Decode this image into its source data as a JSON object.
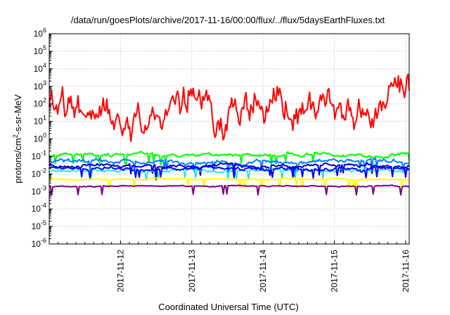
{
  "chart_data": {
    "type": "line",
    "title": "/data/run/goesPlots/archive/2017-11-16/00:00/flux/../flux/5daysEarthFluxes.txt",
    "xlabel": "Coordinated Universal Time (UTC)",
    "ylabel_parts": [
      "protons/cm",
      "2",
      "-s-sr-MeV"
    ],
    "x_ticks": [
      {
        "label": "2017-11-12",
        "day": 12
      },
      {
        "label": "2017-11-13",
        "day": 13
      },
      {
        "label": "2017-11-14",
        "day": 14
      },
      {
        "label": "2017-11-15",
        "day": 15
      },
      {
        "label": "2017-11-16",
        "day": 16
      }
    ],
    "xlim_days": [
      11.0,
      16.05
    ],
    "ylim_exp": [
      -6,
      6
    ],
    "y_scale": "log",
    "y_tick_exps": [
      -6,
      -5,
      -4,
      -3,
      -2,
      -1,
      0,
      1,
      2,
      3,
      4,
      5,
      6
    ],
    "grid": true,
    "series": [
      {
        "color": "#ff0000",
        "base": 40,
        "noise": 1.2,
        "width": 2
      },
      {
        "color": "#00ff00",
        "base": 0.12,
        "noise": 0.12,
        "width": 2
      },
      {
        "color": "#0080ff",
        "base": 0.05,
        "noise": 0.15,
        "width": 2
      },
      {
        "color": "#0000cc",
        "base": 0.03,
        "noise": 0.12,
        "width": 2
      },
      {
        "color": "#00e0e0",
        "base": 0.015,
        "noise": 0.1,
        "width": 1.5
      },
      {
        "color": "#0000ff",
        "base": 0.02,
        "noise": 0.12,
        "width": 2
      },
      {
        "color": "#ffff00",
        "base": 0.005,
        "noise": 0.05,
        "width": 2
      },
      {
        "color": "#800080",
        "base": 0.002,
        "noise": 0.04,
        "width": 2
      }
    ]
  }
}
